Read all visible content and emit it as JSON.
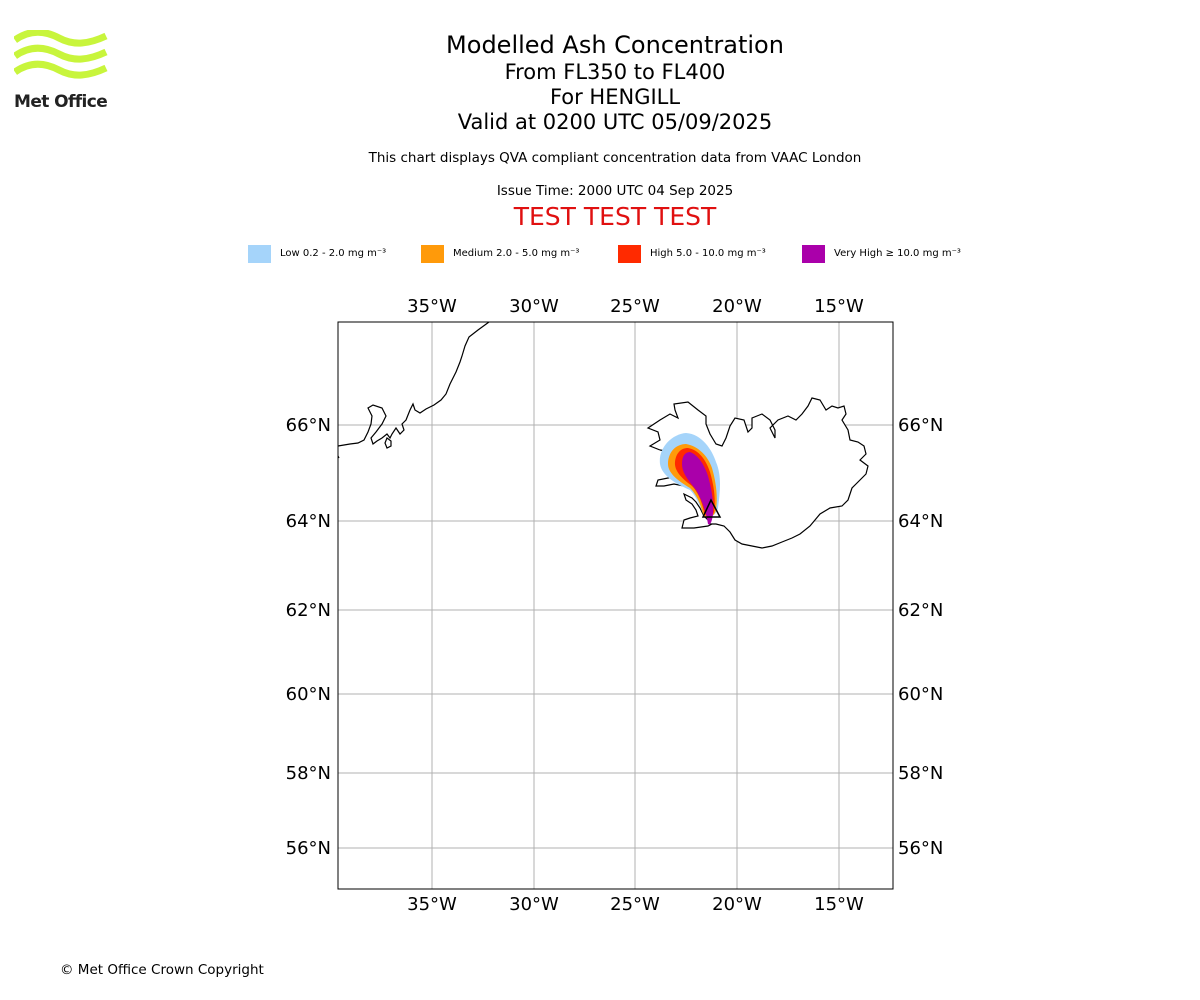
{
  "branding": {
    "logo_text": "Met Office",
    "logo_color": "#c8f53c"
  },
  "header": {
    "title": "Modelled Ash Concentration",
    "levels": "From FL350 to FL400",
    "location": "For HENGILL",
    "valid": "Valid at 0200 UTC 05/09/2025",
    "description": "This chart displays QVA compliant concentration data from VAAC London",
    "issue_time": "Issue Time: 2000 UTC 04 Sep 2025",
    "test_banner": "TEST TEST TEST"
  },
  "legend": [
    {
      "label": "Low 0.2 - 2.0 mg m⁻³",
      "color": "#a5d4fa"
    },
    {
      "label": "Medium 2.0 - 5.0 mg m⁻³",
      "color": "#ff9a0a"
    },
    {
      "label": "High 5.0 - 10.0 mg m⁻³",
      "color": "#ff2a00"
    },
    {
      "label": "Very High ≥ 10.0 mg m⁻³",
      "color": "#aa00aa"
    }
  ],
  "map": {
    "lon_range": [
      "40°W",
      "12°W"
    ],
    "lat_range": [
      "55°N",
      "68°N"
    ],
    "grid": true,
    "lon_ticks": [
      "35°W",
      "30°W",
      "25°W",
      "20°W",
      "15°W"
    ],
    "lat_ticks": [
      "66°N",
      "64°N",
      "62°N",
      "60°N",
      "58°N",
      "56°N"
    ],
    "volcano": "HENGILL"
  },
  "footer": {
    "copyright": "© Met Office Crown Copyright"
  }
}
